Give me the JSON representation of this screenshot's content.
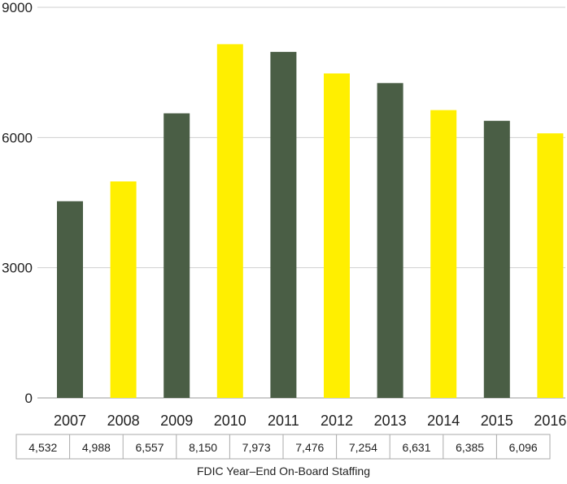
{
  "chart_data": {
    "type": "bar",
    "title": "FDIC Year–End On-Board Staffing",
    "xlabel": "",
    "ylabel": "",
    "categories": [
      "2007",
      "2008",
      "2009",
      "2010",
      "2011",
      "2012",
      "2013",
      "2014",
      "2015",
      "2016"
    ],
    "values": [
      4532,
      4988,
      6557,
      8150,
      7973,
      7476,
      7254,
      6631,
      6385,
      6096
    ],
    "value_labels": [
      "4,532",
      "4,988",
      "6,557",
      "8,150",
      "7,973",
      "7,476",
      "7,254",
      "6,631",
      "6,385",
      "6,096"
    ],
    "ylim": [
      0,
      9000
    ],
    "yticks": [
      0,
      3000,
      6000,
      9000
    ],
    "ytick_labels": [
      "0",
      "3000",
      "6000",
      "9000"
    ],
    "grid": true,
    "legend": "none",
    "colors": [
      "#4a5e45",
      "#ffef00"
    ]
  }
}
